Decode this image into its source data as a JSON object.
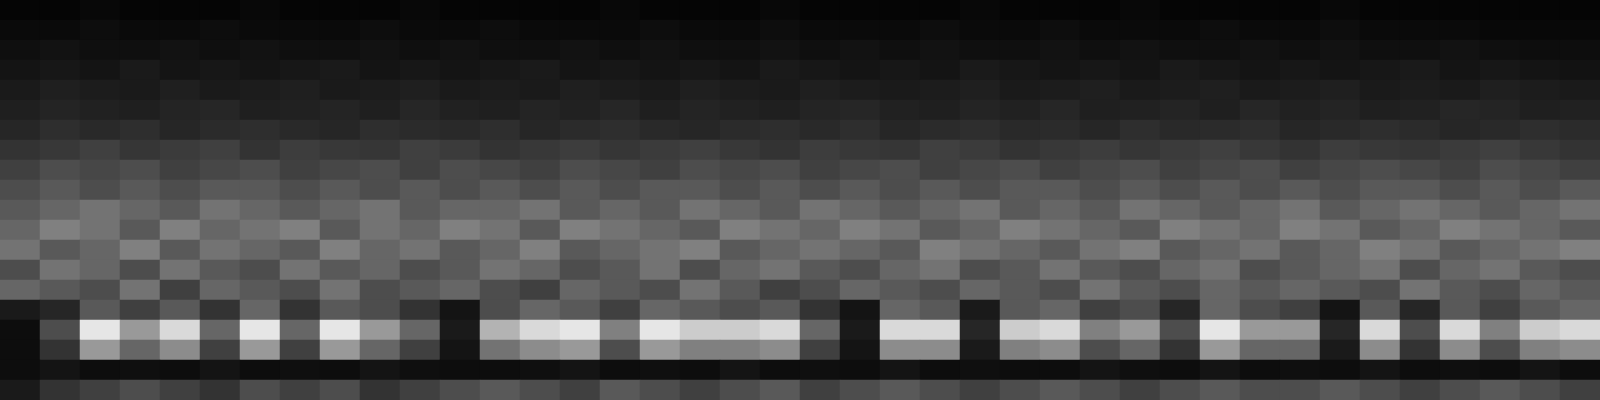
{
  "chart_data": {
    "type": "heatmap",
    "tick_labels": false,
    "grid": false,
    "color_range": [
      0,
      100
    ],
    "cells": [
      [
        2,
        2,
        3,
        2,
        2,
        2,
        3,
        2,
        2,
        2,
        3,
        2,
        2,
        2,
        2,
        3,
        2,
        2,
        2,
        3,
        2,
        2,
        2,
        2,
        3,
        2,
        2,
        2,
        3,
        2,
        2,
        2,
        2,
        3,
        2,
        2,
        2,
        2,
        2,
        2
      ],
      [
        4,
        4,
        5,
        4,
        4,
        5,
        4,
        4,
        4,
        5,
        4,
        4,
        5,
        4,
        4,
        4,
        5,
        4,
        4,
        5,
        4,
        4,
        4,
        5,
        4,
        4,
        5,
        4,
        4,
        4,
        5,
        4,
        4,
        5,
        4,
        4,
        4,
        3,
        3,
        3
      ],
      [
        6,
        7,
        6,
        6,
        7,
        6,
        7,
        6,
        6,
        7,
        6,
        7,
        6,
        6,
        7,
        6,
        7,
        6,
        6,
        7,
        6,
        7,
        6,
        7,
        6,
        6,
        7,
        6,
        7,
        6,
        6,
        7,
        6,
        7,
        6,
        6,
        7,
        6,
        5,
        5
      ],
      [
        8,
        9,
        8,
        10,
        8,
        9,
        8,
        9,
        10,
        8,
        9,
        8,
        9,
        10,
        8,
        9,
        8,
        9,
        8,
        10,
        9,
        8,
        9,
        8,
        10,
        9,
        8,
        9,
        8,
        10,
        9,
        8,
        9,
        8,
        9,
        10,
        8,
        9,
        8,
        7
      ],
      [
        10,
        12,
        11,
        10,
        12,
        10,
        11,
        12,
        10,
        11,
        12,
        10,
        11,
        10,
        12,
        11,
        10,
        12,
        11,
        10,
        12,
        11,
        10,
        11,
        12,
        10,
        11,
        12,
        10,
        11,
        12,
        10,
        11,
        12,
        10,
        11,
        10,
        12,
        11,
        10
      ],
      [
        12,
        14,
        13,
        12,
        14,
        15,
        12,
        13,
        14,
        12,
        15,
        13,
        12,
        14,
        13,
        15,
        12,
        14,
        13,
        12,
        14,
        15,
        13,
        12,
        14,
        13,
        15,
        12,
        13,
        14,
        12,
        15,
        13,
        14,
        12,
        13,
        15,
        14,
        12,
        13
      ],
      [
        15,
        18,
        16,
        18,
        15,
        17,
        18,
        16,
        15,
        18,
        17,
        16,
        18,
        15,
        17,
        18,
        16,
        15,
        17,
        18,
        16,
        18,
        15,
        17,
        18,
        16,
        17,
        15,
        18,
        16,
        17,
        18,
        15,
        16,
        18,
        17,
        15,
        16,
        18,
        17
      ],
      [
        20,
        22,
        25,
        21,
        23,
        25,
        20,
        24,
        22,
        21,
        25,
        23,
        20,
        22,
        24,
        21,
        23,
        25,
        22,
        20,
        24,
        22,
        21,
        25,
        23,
        20,
        22,
        24,
        21,
        23,
        25,
        22,
        20,
        24,
        22,
        21,
        23,
        25,
        22,
        20
      ],
      [
        25,
        30,
        28,
        30,
        25,
        28,
        30,
        25,
        28,
        30,
        25,
        30,
        28,
        25,
        30,
        28,
        25,
        30,
        28,
        30,
        25,
        28,
        30,
        25,
        28,
        30,
        25,
        28,
        30,
        25,
        28,
        30,
        25,
        28,
        30,
        28,
        25,
        30,
        28,
        25
      ],
      [
        30,
        35,
        30,
        35,
        30,
        35,
        35,
        30,
        35,
        30,
        35,
        30,
        35,
        30,
        35,
        30,
        35,
        35,
        30,
        35,
        30,
        35,
        30,
        35,
        30,
        35,
        35,
        30,
        35,
        30,
        35,
        30,
        35,
        30,
        35,
        35,
        30,
        35,
        30,
        35
      ],
      [
        35,
        40,
        45,
        40,
        35,
        45,
        40,
        35,
        40,
        45,
        35,
        40,
        40,
        45,
        35,
        40,
        35,
        45,
        40,
        35,
        45,
        40,
        35,
        40,
        45,
        35,
        40,
        35,
        45,
        40,
        35,
        40,
        45,
        35,
        40,
        45,
        40,
        35,
        40,
        45
      ],
      [
        40,
        50,
        45,
        35,
        50,
        40,
        45,
        50,
        35,
        45,
        40,
        50,
        45,
        35,
        50,
        45,
        40,
        35,
        50,
        45,
        40,
        50,
        45,
        35,
        40,
        50,
        45,
        40,
        35,
        50,
        45,
        40,
        50,
        45,
        35,
        40,
        50,
        45,
        40,
        35
      ],
      [
        45,
        35,
        40,
        50,
        35,
        45,
        40,
        35,
        50,
        40,
        45,
        35,
        40,
        50,
        35,
        40,
        45,
        50,
        35,
        40,
        45,
        40,
        35,
        50,
        45,
        40,
        35,
        45,
        50,
        35,
        40,
        45,
        35,
        40,
        50,
        45,
        35,
        40,
        45,
        50
      ],
      [
        30,
        45,
        40,
        30,
        45,
        35,
        30,
        45,
        35,
        40,
        30,
        35,
        45,
        40,
        30,
        35,
        45,
        30,
        40,
        45,
        35,
        30,
        40,
        45,
        30,
        35,
        45,
        35,
        30,
        40,
        45,
        30,
        35,
        40,
        45,
        30,
        40,
        45,
        35,
        30
      ],
      [
        40,
        35,
        30,
        45,
        25,
        40,
        35,
        30,
        45,
        30,
        35,
        40,
        30,
        25,
        40,
        35,
        30,
        45,
        35,
        25,
        30,
        40,
        35,
        30,
        40,
        35,
        30,
        45,
        35,
        30,
        40,
        35,
        40,
        35,
        30,
        45,
        35,
        30,
        40,
        35
      ],
      [
        10,
        15,
        35,
        25,
        35,
        20,
        40,
        20,
        35,
        30,
        20,
        8,
        30,
        40,
        35,
        25,
        40,
        35,
        30,
        35,
        20,
        8,
        40,
        35,
        10,
        35,
        40,
        25,
        30,
        15,
        40,
        30,
        25,
        8,
        35,
        15,
        35,
        25,
        35,
        40
      ],
      [
        5,
        30,
        90,
        60,
        85,
        40,
        90,
        40,
        90,
        60,
        40,
        10,
        70,
        85,
        90,
        50,
        90,
        80,
        80,
        85,
        40,
        10,
        85,
        85,
        15,
        80,
        85,
        50,
        60,
        30,
        90,
        60,
        60,
        15,
        85,
        30,
        85,
        50,
        80,
        85
      ],
      [
        5,
        20,
        60,
        40,
        55,
        25,
        60,
        25,
        60,
        40,
        25,
        8,
        45,
        55,
        60,
        30,
        60,
        50,
        50,
        55,
        25,
        8,
        55,
        55,
        10,
        50,
        55,
        30,
        40,
        20,
        60,
        40,
        40,
        10,
        55,
        20,
        55,
        30,
        50,
        55
      ],
      [
        5,
        8,
        5,
        6,
        5,
        8,
        5,
        6,
        5,
        8,
        6,
        5,
        5,
        6,
        8,
        5,
        6,
        5,
        8,
        5,
        6,
        5,
        8,
        5,
        6,
        5,
        5,
        8,
        6,
        5,
        8,
        5,
        6,
        5,
        8,
        5,
        6,
        5,
        8,
        5
      ],
      [
        10,
        20,
        25,
        30,
        25,
        20,
        30,
        25,
        30,
        20,
        25,
        30,
        35,
        30,
        25,
        35,
        30,
        25,
        30,
        35,
        25,
        30,
        35,
        30,
        25,
        30,
        35,
        30,
        25,
        30,
        35,
        30,
        30,
        35,
        30,
        25,
        30,
        35,
        30,
        25
      ]
    ]
  }
}
